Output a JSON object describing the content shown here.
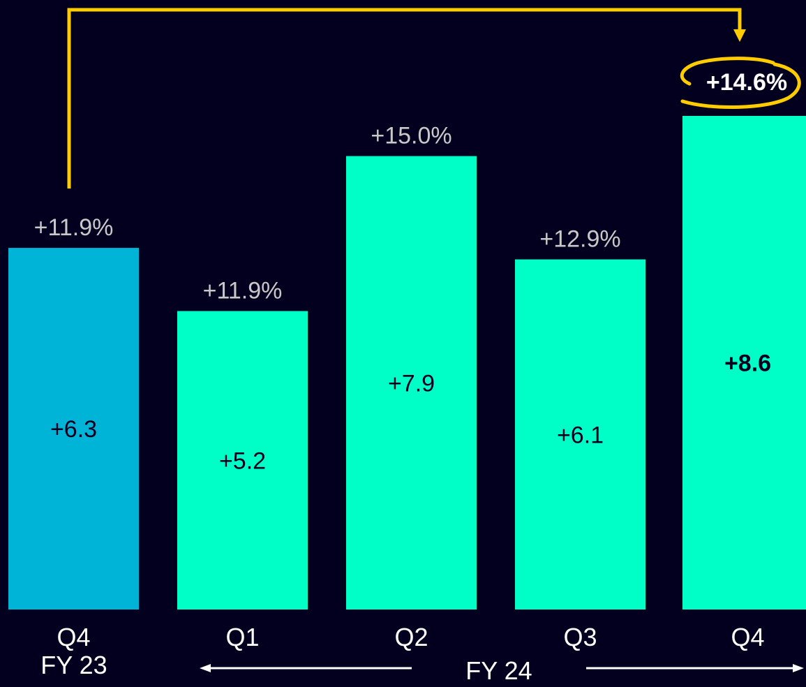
{
  "chart_data": {
    "type": "bar",
    "title": "",
    "xlabel": "",
    "ylabel": "",
    "ylim": [
      0,
      8.9
    ],
    "grid": false,
    "legend": "none",
    "categories": [
      "Q4",
      "Q1",
      "Q2",
      "Q3",
      "Q4"
    ],
    "periods": [
      "FY 23",
      "FY 24",
      "FY 24",
      "FY 24",
      "FY 24"
    ],
    "values": [
      6.3,
      5.2,
      7.9,
      6.1,
      8.6
    ],
    "value_labels": [
      "+6.3",
      "+5.2",
      "+7.9",
      "+6.1",
      "+8.6"
    ],
    "growth_labels": [
      "+11.9%",
      "+11.9%",
      "+15.0%",
      "+12.9%",
      "+14.6%"
    ],
    "highlight_index": 4,
    "group_labels": {
      "fy23": "FY 23",
      "fy24": "FY 24"
    },
    "colors": {
      "background": "#03001f",
      "prior_year_bar": "#00b4d8",
      "current_year_bar": "#00ffc6",
      "growth_text": "#c8c8c8",
      "highlight_text": "#ffffff",
      "value_text": "#03001f",
      "connector": "#ffcc00",
      "axis_text": "#ffffff"
    }
  }
}
